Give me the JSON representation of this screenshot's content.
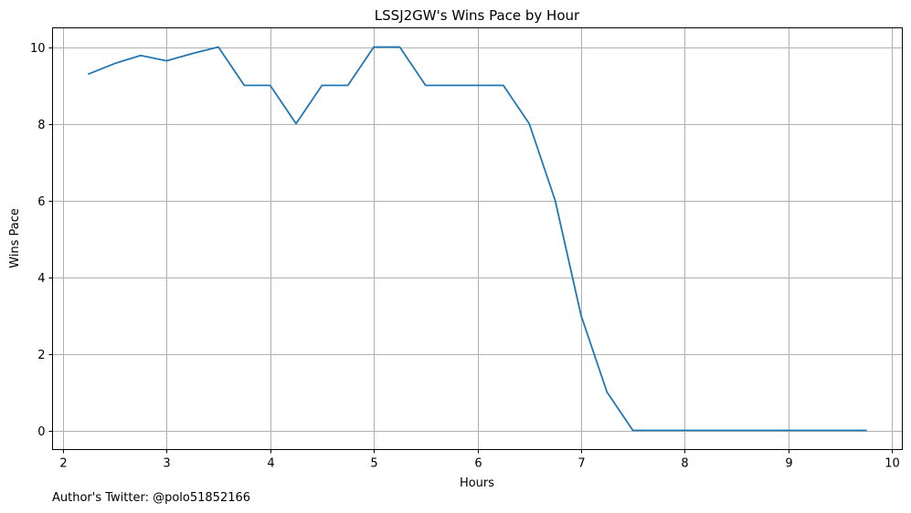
{
  "chart_data": {
    "type": "line",
    "title": "LSSJ2GW's Wins Pace by Hour",
    "xlabel": "Hours",
    "ylabel": "Wins Pace",
    "xlim": [
      1.9,
      10.1
    ],
    "ylim": [
      -0.5,
      10.5
    ],
    "x_ticks": [
      2,
      3,
      4,
      5,
      6,
      7,
      8,
      9,
      10
    ],
    "y_ticks": [
      0,
      2,
      4,
      6,
      8,
      10
    ],
    "grid": true,
    "series": [
      {
        "color": "#1f77b4",
        "x": [
          2.25,
          2.5,
          2.75,
          3.0,
          3.25,
          3.5,
          3.75,
          4.0,
          4.25,
          4.5,
          4.75,
          5.0,
          5.25,
          5.5,
          5.75,
          6.0,
          6.25,
          6.5,
          6.75,
          7.0,
          7.25,
          7.5,
          7.75,
          8.0,
          8.25,
          8.5,
          8.75,
          9.0,
          9.25,
          9.5,
          9.75
        ],
        "y": [
          9.3,
          9.57,
          9.78,
          9.64,
          9.83,
          10.0,
          9.0,
          9.0,
          8.0,
          9.0,
          9.0,
          10.0,
          10.0,
          9.0,
          9.0,
          9.0,
          9.0,
          8.0,
          6.0,
          3.0,
          1.0,
          0.0,
          0.0,
          0.0,
          0.0,
          0.0,
          0.0,
          0.0,
          0.0,
          0.0,
          0.0
        ]
      }
    ]
  },
  "footer": {
    "credit": "Author's Twitter: @polo51852166"
  }
}
